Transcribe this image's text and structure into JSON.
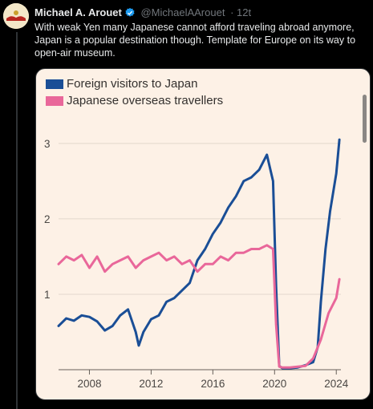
{
  "tweet": {
    "author_name": "Michael A. Arouet",
    "author_handle": "@MichaelAArouet",
    "time": "12t",
    "text": "With weak Yen many Japanese cannot afford traveling abroad anymore, Japan is a popular destination though. Template for Europe on its way to open-air museum."
  },
  "icons": {
    "verified": "verified-badge-icon",
    "avatar": "avatar"
  },
  "colors": {
    "background": "#000000",
    "card": "#fdf1e6",
    "foreign": "#1a4e96",
    "japanese": "#e9679a"
  },
  "chart_data": {
    "type": "line",
    "title": "",
    "xlabel": "",
    "ylabel": "",
    "grid": true,
    "legend_position": "top-left",
    "xlim": [
      2006,
      2024.3
    ],
    "ylim": [
      0,
      3.2
    ],
    "x_ticks": [
      "2008",
      "2012",
      "2016",
      "2020",
      "2024"
    ],
    "y_ticks": [
      "1",
      "2",
      "3"
    ],
    "series": [
      {
        "name": "Foreign visitors to Japan",
        "color": "#1a4e96",
        "x": [
          2006,
          2006.5,
          2007,
          2007.5,
          2008,
          2008.5,
          2009,
          2009.5,
          2010,
          2010.5,
          2011,
          2011.2,
          2011.5,
          2012,
          2012.5,
          2013,
          2013.5,
          2014,
          2014.5,
          2015,
          2015.5,
          2016,
          2016.5,
          2017,
          2017.5,
          2018,
          2018.5,
          2019,
          2019.5,
          2019.9,
          2020.1,
          2020.3,
          2020.5,
          2021,
          2021.5,
          2022,
          2022.5,
          2022.8,
          2023,
          2023.3,
          2023.6,
          2024,
          2024.2
        ],
        "y": [
          0.58,
          0.68,
          0.65,
          0.72,
          0.7,
          0.64,
          0.52,
          0.58,
          0.72,
          0.8,
          0.5,
          0.32,
          0.5,
          0.67,
          0.72,
          0.9,
          0.95,
          1.05,
          1.15,
          1.45,
          1.6,
          1.8,
          1.95,
          2.15,
          2.3,
          2.5,
          2.55,
          2.65,
          2.85,
          2.5,
          1.1,
          0.05,
          0.02,
          0.02,
          0.03,
          0.06,
          0.1,
          0.3,
          0.9,
          1.6,
          2.1,
          2.6,
          3.05
        ]
      },
      {
        "name": "Japanese overseas travellers",
        "color": "#e9679a",
        "x": [
          2006,
          2006.5,
          2007,
          2007.5,
          2008,
          2008.5,
          2009,
          2009.5,
          2010,
          2010.5,
          2011,
          2011.5,
          2012,
          2012.5,
          2013,
          2013.5,
          2014,
          2014.5,
          2015,
          2015.5,
          2016,
          2016.5,
          2017,
          2017.5,
          2018,
          2018.5,
          2019,
          2019.5,
          2019.9,
          2020.1,
          2020.3,
          2020.5,
          2021,
          2021.5,
          2022,
          2022.5,
          2023,
          2023.5,
          2024,
          2024.2
        ],
        "y": [
          1.4,
          1.5,
          1.45,
          1.52,
          1.35,
          1.5,
          1.3,
          1.4,
          1.45,
          1.5,
          1.35,
          1.45,
          1.5,
          1.55,
          1.45,
          1.5,
          1.4,
          1.45,
          1.3,
          1.4,
          1.4,
          1.5,
          1.45,
          1.55,
          1.55,
          1.6,
          1.6,
          1.65,
          1.6,
          0.6,
          0.04,
          0.03,
          0.03,
          0.04,
          0.05,
          0.15,
          0.4,
          0.75,
          0.95,
          1.2
        ]
      }
    ]
  }
}
